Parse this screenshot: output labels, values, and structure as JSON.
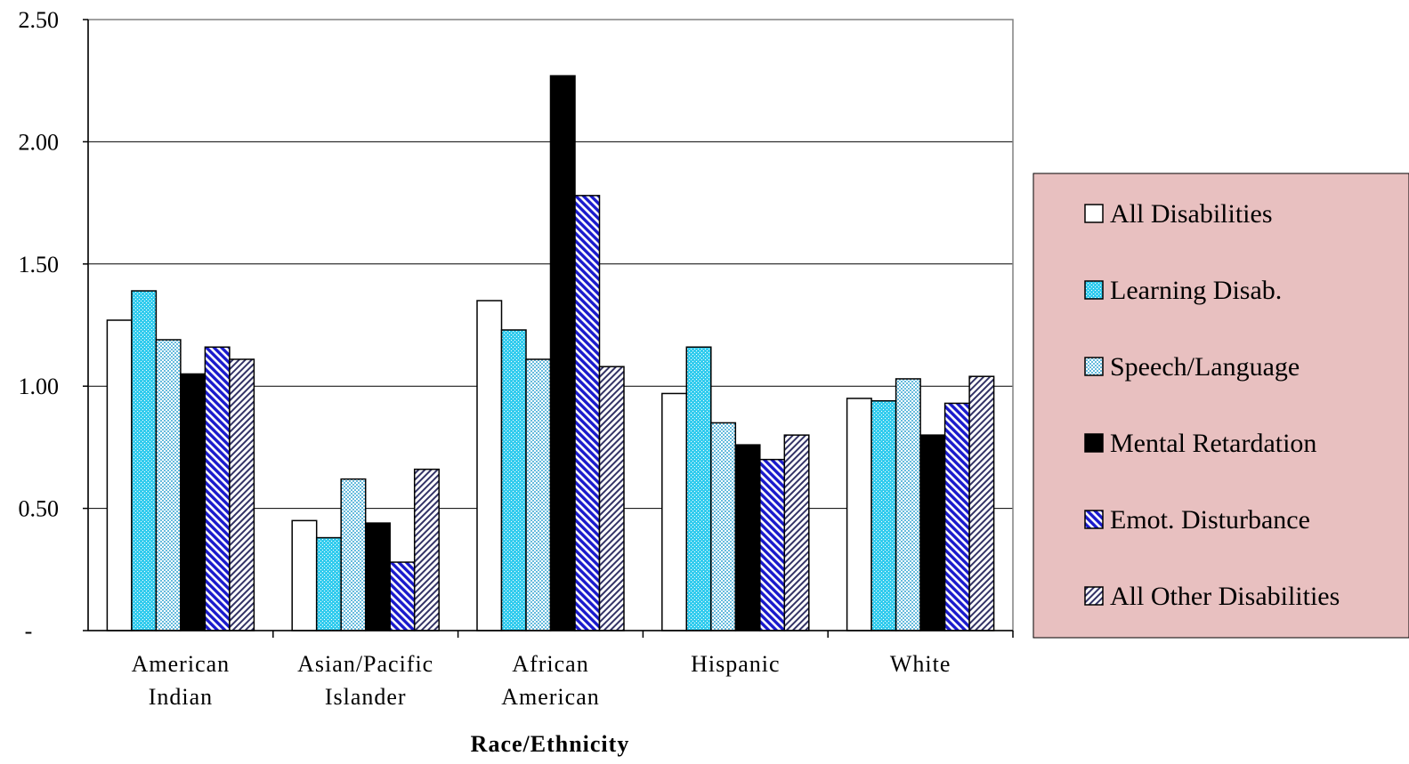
{
  "chart_data": {
    "type": "bar",
    "title": "",
    "xlabel": "Race/Ethnicity",
    "ylabel": "",
    "ylim": [
      0,
      2.5
    ],
    "yticks": [
      0,
      0.5,
      1.0,
      1.5,
      2.0,
      2.5
    ],
    "ytick_labels": [
      "-",
      "0.50",
      "1.00",
      "1.50",
      "2.00",
      "2.50"
    ],
    "grid": true,
    "legend_position": "right",
    "categories": [
      [
        "American",
        "Indian"
      ],
      [
        "Asian/Pacific",
        "Islander"
      ],
      [
        "African",
        "American"
      ],
      [
        "Hispanic"
      ],
      [
        "White"
      ]
    ],
    "series": [
      {
        "name": "All Disabilities",
        "values": [
          1.27,
          0.45,
          1.35,
          0.97,
          0.95
        ],
        "pattern": "solid",
        "color": "#ffffff"
      },
      {
        "name": "Learning Disab.",
        "values": [
          1.39,
          0.38,
          1.23,
          1.16,
          0.94
        ],
        "pattern": "dots",
        "color": "#33ccee"
      },
      {
        "name": "Speech/Language",
        "values": [
          1.19,
          0.62,
          1.11,
          0.85,
          1.03
        ],
        "pattern": "checker",
        "color": "#aadcee"
      },
      {
        "name": "Mental Retardation",
        "values": [
          1.05,
          0.44,
          2.27,
          0.76,
          0.8
        ],
        "pattern": "solid",
        "color": "#000000"
      },
      {
        "name": "Emot. Disturbance",
        "values": [
          1.16,
          0.28,
          1.78,
          0.7,
          0.93
        ],
        "pattern": "diag-up",
        "color": "#2222dd"
      },
      {
        "name": "All Other Disabilities",
        "values": [
          1.11,
          0.66,
          1.08,
          0.8,
          1.04
        ],
        "pattern": "diag-down",
        "color": "#8888cc"
      }
    ]
  },
  "legend_bg": "#e8c0c0"
}
